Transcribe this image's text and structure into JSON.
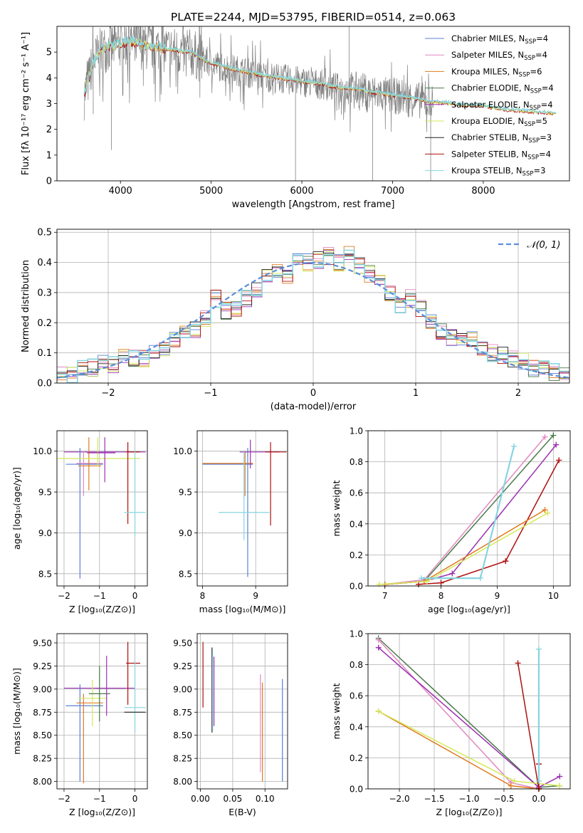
{
  "figure_title": "PLATE=2244, MJD=53795, FIBERID=0514, z=0.063",
  "series_colors": {
    "chabrier_miles": "#5b7fd4",
    "salpeter_miles": "#e388c0",
    "kroupa_miles": "#e07b1f",
    "chabrier_elodie": "#4a7a4a",
    "salpeter_elodie": "#9b30b0",
    "kroupa_elodie": "#d4e85a",
    "chabrier_stelib": "#222222",
    "salpeter_stelib": "#b01010",
    "kroupa_stelib": "#88d4e0",
    "data": "#808080"
  },
  "chart_data": [
    {
      "id": "spectrum",
      "type": "line",
      "xlabel": "wavelength [Angstrom, rest frame]",
      "ylabel": "Flux [fλ 10⁻¹⁷ erg cm⁻² s⁻¹ A⁻¹]",
      "xlim": [
        3300,
        8950
      ],
      "ylim": [
        0,
        6
      ],
      "xticks": [
        "4000",
        "5000",
        "6000",
        "7000",
        "8000"
      ],
      "yticks": [
        "0",
        "1",
        "2",
        "3",
        "4",
        "5"
      ],
      "continuum": {
        "x": [
          3600,
          3700,
          3800,
          3900,
          4000,
          4100,
          4200,
          4300,
          4400,
          4500,
          4600,
          4700,
          4800,
          4900,
          5000,
          5200,
          5400,
          5600,
          5800,
          6000,
          6200,
          6400,
          6600,
          6800,
          7000,
          7200,
          7400,
          7600,
          7800,
          8000,
          8200,
          8400,
          8600,
          8800
        ],
        "y": [
          3.3,
          4.6,
          5.1,
          5.2,
          5.3,
          5.4,
          5.3,
          5.2,
          5.2,
          5.1,
          5.05,
          5.0,
          4.95,
          4.7,
          4.55,
          4.35,
          4.2,
          4.05,
          3.95,
          3.85,
          3.75,
          3.6,
          3.55,
          3.4,
          3.3,
          3.2,
          3.05,
          3.0,
          2.9,
          2.9,
          2.75,
          2.7,
          2.65,
          2.6
        ]
      },
      "legend": [
        {
          "label": "Chabrier MILES, N",
          "sub": "SSP",
          "suffix": "=4",
          "color_key": "chabrier_miles"
        },
        {
          "label": "Salpeter MILES, N",
          "sub": "SSP",
          "suffix": "=4",
          "color_key": "salpeter_miles"
        },
        {
          "label": "Kroupa MILES, N",
          "sub": "SSP",
          "suffix": "=6",
          "color_key": "kroupa_miles"
        },
        {
          "label": "Chabrier ELODIE, N",
          "sub": "SSP",
          "suffix": "=4",
          "color_key": "chabrier_elodie"
        },
        {
          "label": "Salpeter ELODIE, N",
          "sub": "SSP",
          "suffix": "=4",
          "color_key": "salpeter_elodie"
        },
        {
          "label": "Kroupa ELODIE, N",
          "sub": "SSP",
          "suffix": "=5",
          "color_key": "kroupa_elodie"
        },
        {
          "label": "Chabrier STELIB, N",
          "sub": "SSP",
          "suffix": "=3",
          "color_key": "chabrier_stelib"
        },
        {
          "label": "Salpeter STELIB, N",
          "sub": "SSP",
          "suffix": "=4",
          "color_key": "salpeter_stelib"
        },
        {
          "label": "Kroupa STELIB, N",
          "sub": "SSP",
          "suffix": "=3",
          "color_key": "kroupa_stelib"
        }
      ],
      "legend_position": "upper-right"
    },
    {
      "id": "residuals",
      "type": "step",
      "xlabel": "(data-model)/error",
      "ylabel": "Normed distribution",
      "xlim": [
        -2.5,
        2.5
      ],
      "ylim": [
        0,
        0.51
      ],
      "xticks": [
        "−2",
        "−1",
        "0",
        "1",
        "2"
      ],
      "yticks": [
        "0.0",
        "0.1",
        "0.2",
        "0.3",
        "0.4",
        "0.5"
      ],
      "bins": [
        -2.5,
        -2.4,
        -2.3,
        -2.2,
        -2.1,
        -2.0,
        -1.9,
        -1.8,
        -1.7,
        -1.6,
        -1.5,
        -1.4,
        -1.3,
        -1.2,
        -1.1,
        -1.0,
        -0.9,
        -0.8,
        -0.7,
        -0.6,
        -0.5,
        -0.4,
        -0.3,
        -0.2,
        -0.1,
        0.0,
        0.1,
        0.2,
        0.3,
        0.4,
        0.5,
        0.6,
        0.7,
        0.8,
        0.9,
        1.0,
        1.1,
        1.2,
        1.3,
        1.4,
        1.5,
        1.6,
        1.7,
        1.8,
        1.9,
        2.0,
        2.1,
        2.2,
        2.3,
        2.4,
        2.5
      ],
      "hist_base": [
        0.025,
        0.03,
        0.045,
        0.05,
        0.07,
        0.06,
        0.09,
        0.085,
        0.08,
        0.11,
        0.11,
        0.14,
        0.16,
        0.18,
        0.21,
        0.28,
        0.24,
        0.24,
        0.28,
        0.31,
        0.35,
        0.38,
        0.36,
        0.42,
        0.4,
        0.41,
        0.42,
        0.4,
        0.43,
        0.39,
        0.36,
        0.34,
        0.3,
        0.26,
        0.28,
        0.25,
        0.2,
        0.17,
        0.15,
        0.15,
        0.14,
        0.11,
        0.1,
        0.09,
        0.08,
        0.075,
        0.05,
        0.045,
        0.035,
        0.025
      ],
      "reference": {
        "label": "𝒩(0, 1)",
        "mean": 0,
        "sigma": 1,
        "color": "#5b8ed8"
      },
      "legend_position": "upper-right"
    },
    {
      "id": "age_vs_Z",
      "type": "errorbar",
      "xlabel": "Z [log₁₀(Z/Z⊙)]",
      "ylabel": "age  [log₁₀(age/yr)]",
      "xlim": [
        -2.2,
        0.35
      ],
      "ylim": [
        8.35,
        10.25
      ],
      "xticks": [
        "−2",
        "−1",
        "0"
      ],
      "yticks": [
        "8.5",
        "9.0",
        "9.5",
        "10.0"
      ],
      "points": [
        {
          "x": -2.0,
          "y": 9.99,
          "xerr": [
            0,
            2.3
          ],
          "yerr": [
            0,
            0
          ],
          "c": "salpeter_elodie"
        },
        {
          "x": -1.55,
          "y": 9.84,
          "xerr": [
            0.4,
            0.65
          ],
          "yerr": [
            1.4,
            0.2
          ],
          "c": "chabrier_miles"
        },
        {
          "x": -1.45,
          "y": 9.85,
          "xerr": [
            0.2,
            0.55
          ],
          "yerr": [
            0.4,
            0.15
          ],
          "c": "salpeter_miles"
        },
        {
          "x": -1.3,
          "y": 9.82,
          "xerr": [
            0.3,
            0.35
          ],
          "yerr": [
            0.3,
            0.35
          ],
          "c": "kroupa_miles"
        },
        {
          "x": -1.05,
          "y": 9.91,
          "xerr": [
            1.3,
            1.2
          ],
          "yerr": [
            0.1,
            0.26
          ],
          "c": "kroupa_elodie"
        },
        {
          "x": -0.85,
          "y": 9.98,
          "xerr": [
            0.5,
            0.3
          ],
          "yerr": [
            0.36,
            0.19
          ],
          "c": "salpeter_elodie"
        },
        {
          "x": -0.2,
          "y": 9.99,
          "xerr": [
            0.05,
            0.35
          ],
          "yerr": [
            0.88,
            0.12
          ],
          "c": "salpeter_stelib"
        },
        {
          "x": 0.0,
          "y": 9.25,
          "xerr": [
            0.3,
            0.3
          ],
          "yerr": [
            0.3,
            0.76
          ],
          "c": "kroupa_stelib"
        }
      ]
    },
    {
      "id": "age_vs_mass",
      "type": "errorbar",
      "xlabel": "mass [log₁₀(M/M⊙)]",
      "ylabel": "",
      "xlim": [
        7.9,
        9.6
      ],
      "ylim": [
        8.35,
        10.25
      ],
      "xticks": [
        "8",
        "9"
      ],
      "yticks": [
        "8.5",
        "9.0",
        "9.5",
        "10.0"
      ],
      "points": [
        {
          "x": 8.85,
          "y": 9.84,
          "xerr": [
            0.85,
            0.1
          ],
          "yerr": [
            1.38,
            0.2
          ],
          "c": "chabrier_miles"
        },
        {
          "x": 8.8,
          "y": 9.85,
          "xerr": [
            0.8,
            0.15
          ],
          "yerr": [
            0.4,
            0.15
          ],
          "c": "kroupa_miles"
        },
        {
          "x": 8.9,
          "y": 9.99,
          "xerr": [
            0.2,
            0.55
          ],
          "yerr": [
            0.2,
            0.15
          ],
          "c": "salpeter_elodie"
        },
        {
          "x": 8.78,
          "y": 9.25,
          "xerr": [
            0.48,
            0.48
          ],
          "yerr": [
            0.34,
            0.76
          ],
          "c": "kroupa_stelib"
        },
        {
          "x": 9.28,
          "y": 9.99,
          "xerr": [
            0.1,
            0.3
          ],
          "yerr": [
            0.9,
            0.12
          ],
          "c": "salpeter_stelib"
        }
      ]
    },
    {
      "id": "weight_vs_age",
      "type": "line",
      "xlabel": "age  [log₁₀(age/yr)]",
      "ylabel": "mass weight",
      "xlim": [
        6.7,
        10.3
      ],
      "ylim": [
        0,
        1
      ],
      "xticks": [
        "7",
        "8",
        "9",
        "10"
      ],
      "yticks": [
        "0.0",
        "0.2",
        "0.4",
        "0.6",
        "0.8",
        "1.0"
      ],
      "series": [
        {
          "c": "chabrier_elodie",
          "x": [
            7.0,
            7.7,
            10.0
          ],
          "y": [
            0.01,
            0.03,
            0.97
          ]
        },
        {
          "c": "salpeter_miles",
          "x": [
            7.0,
            7.7,
            9.85
          ],
          "y": [
            0.01,
            0.04,
            0.96
          ]
        },
        {
          "c": "salpeter_elodie",
          "x": [
            7.0,
            7.7,
            8.2,
            10.05
          ],
          "y": [
            0.01,
            0.03,
            0.08,
            0.91
          ]
        },
        {
          "c": "salpeter_stelib",
          "x": [
            7.6,
            8.0,
            9.15,
            10.1
          ],
          "y": [
            0.01,
            0.02,
            0.16,
            0.81
          ]
        },
        {
          "c": "kroupa_miles",
          "x": [
            7.0,
            7.7,
            9.85
          ],
          "y": [
            0.01,
            0.03,
            0.49
          ]
        },
        {
          "c": "kroupa_elodie",
          "x": [
            6.9,
            7.75,
            9.9
          ],
          "y": [
            0.01,
            0.03,
            0.47
          ]
        },
        {
          "c": "kroupa_stelib",
          "x": [
            7.65,
            8.7,
            9.3
          ],
          "y": [
            0.05,
            0.05,
            0.9
          ]
        }
      ]
    },
    {
      "id": "mass_vs_Z",
      "type": "errorbar",
      "xlabel": "Z [log₁₀(Z/Z⊙)]",
      "ylabel": "mass [log₁₀(M/M⊙)]",
      "xlim": [
        -2.2,
        0.35
      ],
      "ylim": [
        7.92,
        9.6
      ],
      "xticks": [
        "−2",
        "−1",
        "0"
      ],
      "yticks": [
        "8.00",
        "8.25",
        "8.50",
        "8.75",
        "9.00",
        "9.25",
        "9.50"
      ],
      "points": [
        {
          "x": -2.0,
          "y": 9.01,
          "xerr": [
            0,
            2.0
          ],
          "yerr": [
            0,
            0
          ],
          "c": "salpeter_elodie"
        },
        {
          "x": -1.55,
          "y": 8.82,
          "xerr": [
            0.4,
            0.65
          ],
          "yerr": [
            0.82,
            0.23
          ],
          "c": "chabrier_miles"
        },
        {
          "x": -1.45,
          "y": 8.85,
          "xerr": [
            0.2,
            0.55
          ],
          "yerr": [
            0.87,
            0.1
          ],
          "c": "kroupa_miles"
        },
        {
          "x": -1.2,
          "y": 8.9,
          "xerr": [
            0.4,
            0.4
          ],
          "yerr": [
            0.3,
            0.2
          ],
          "c": "kroupa_elodie"
        },
        {
          "x": -1.0,
          "y": 8.95,
          "xerr": [
            0.3,
            0.3
          ],
          "yerr": [
            0.3,
            0.3
          ],
          "c": "chabrier_elodie"
        },
        {
          "x": -0.8,
          "y": 9.01,
          "xerr": [
            0.3,
            0.5
          ],
          "yerr": [
            0.3,
            0.35
          ],
          "c": "salpeter_elodie"
        },
        {
          "x": -0.2,
          "y": 9.28,
          "xerr": [
            0.05,
            0.35
          ],
          "yerr": [
            0.45,
            0.23
          ],
          "c": "salpeter_stelib"
        },
        {
          "x": 0.0,
          "y": 8.8,
          "xerr": [
            0.3,
            0.3
          ],
          "yerr": [
            0.27,
            0.5
          ],
          "c": "kroupa_stelib"
        },
        {
          "x": 0.0,
          "y": 8.75,
          "xerr": [
            0.3,
            0.3
          ],
          "yerr": [
            0,
            0
          ],
          "c": "chabrier_stelib"
        }
      ]
    },
    {
      "id": "mass_vs_EBV",
      "type": "errorbar",
      "xlabel": "E(B-V)",
      "ylabel": "",
      "xlim": [
        -0.005,
        0.135
      ],
      "ylim": [
        7.92,
        9.6
      ],
      "xticks": [
        "0.00",
        "0.05",
        "0.10"
      ],
      "yticks": [
        "8.00",
        "8.25",
        "8.50",
        "8.75",
        "9.00",
        "9.25",
        "9.50"
      ],
      "points": [
        {
          "x": 0.004,
          "y": 9.15,
          "xerr": [
            0,
            0
          ],
          "yerr": [
            0.35,
            0.36
          ],
          "c": "salpeter_stelib"
        },
        {
          "x": 0.018,
          "y": 9.0,
          "xerr": [
            0,
            0
          ],
          "yerr": [
            0.47,
            0.45
          ],
          "c": "chabrier_stelib"
        },
        {
          "x": 0.019,
          "y": 8.95,
          "xerr": [
            0,
            0
          ],
          "yerr": [
            0.4,
            0.45
          ],
          "c": "kroupa_stelib"
        },
        {
          "x": 0.021,
          "y": 9.0,
          "xerr": [
            0,
            0
          ],
          "yerr": [
            0.4,
            0.35
          ],
          "c": "salpeter_elodie"
        },
        {
          "x": 0.093,
          "y": 8.6,
          "xerr": [
            0,
            0
          ],
          "yerr": [
            0.5,
            0.56
          ],
          "c": "salpeter_miles"
        },
        {
          "x": 0.096,
          "y": 8.6,
          "xerr": [
            0,
            0
          ],
          "yerr": [
            0.6,
            0.47
          ],
          "c": "kroupa_miles"
        },
        {
          "x": 0.127,
          "y": 8.5,
          "xerr": [
            0,
            0
          ],
          "yerr": [
            0.5,
            0.61
          ],
          "c": "chabrier_miles"
        }
      ]
    },
    {
      "id": "weight_vs_Z",
      "type": "line",
      "xlabel": "Z [log₁₀(Z/Z⊙)]",
      "ylabel": "mass weight",
      "xlim": [
        -2.45,
        0.45
      ],
      "ylim": [
        0,
        1
      ],
      "xticks": [
        "−2.0",
        "−1.5",
        "−1.0",
        "−0.5",
        "0.0"
      ],
      "yticks": [
        "0.0",
        "0.2",
        "0.4",
        "0.6",
        "0.8",
        "1.0"
      ],
      "series": [
        {
          "c": "chabrier_elodie",
          "x": [
            -2.3,
            0.0,
            0.3
          ],
          "y": [
            0.97,
            0.01,
            0.02
          ]
        },
        {
          "c": "salpeter_miles",
          "x": [
            -2.3,
            -0.4,
            0.0
          ],
          "y": [
            0.96,
            0.04,
            0.0
          ]
        },
        {
          "c": "salpeter_elodie",
          "x": [
            -2.3,
            0.0,
            0.3
          ],
          "y": [
            0.91,
            0.01,
            0.08
          ]
        },
        {
          "c": "kroupa_miles",
          "x": [
            -2.3,
            -0.4,
            0.0
          ],
          "y": [
            0.5,
            0.02,
            0.0
          ]
        },
        {
          "c": "kroupa_elodie",
          "x": [
            -2.3,
            -0.35,
            0.3
          ],
          "y": [
            0.5,
            0.05,
            0.02
          ]
        },
        {
          "c": "salpeter_stelib",
          "x": [
            -0.3,
            0.0,
            0.0
          ],
          "y": [
            0.81,
            0.0,
            0.16
          ]
        },
        {
          "c": "kroupa_stelib",
          "x": [
            0.0,
            0.0
          ],
          "y": [
            0.05,
            0.9
          ]
        }
      ]
    }
  ]
}
